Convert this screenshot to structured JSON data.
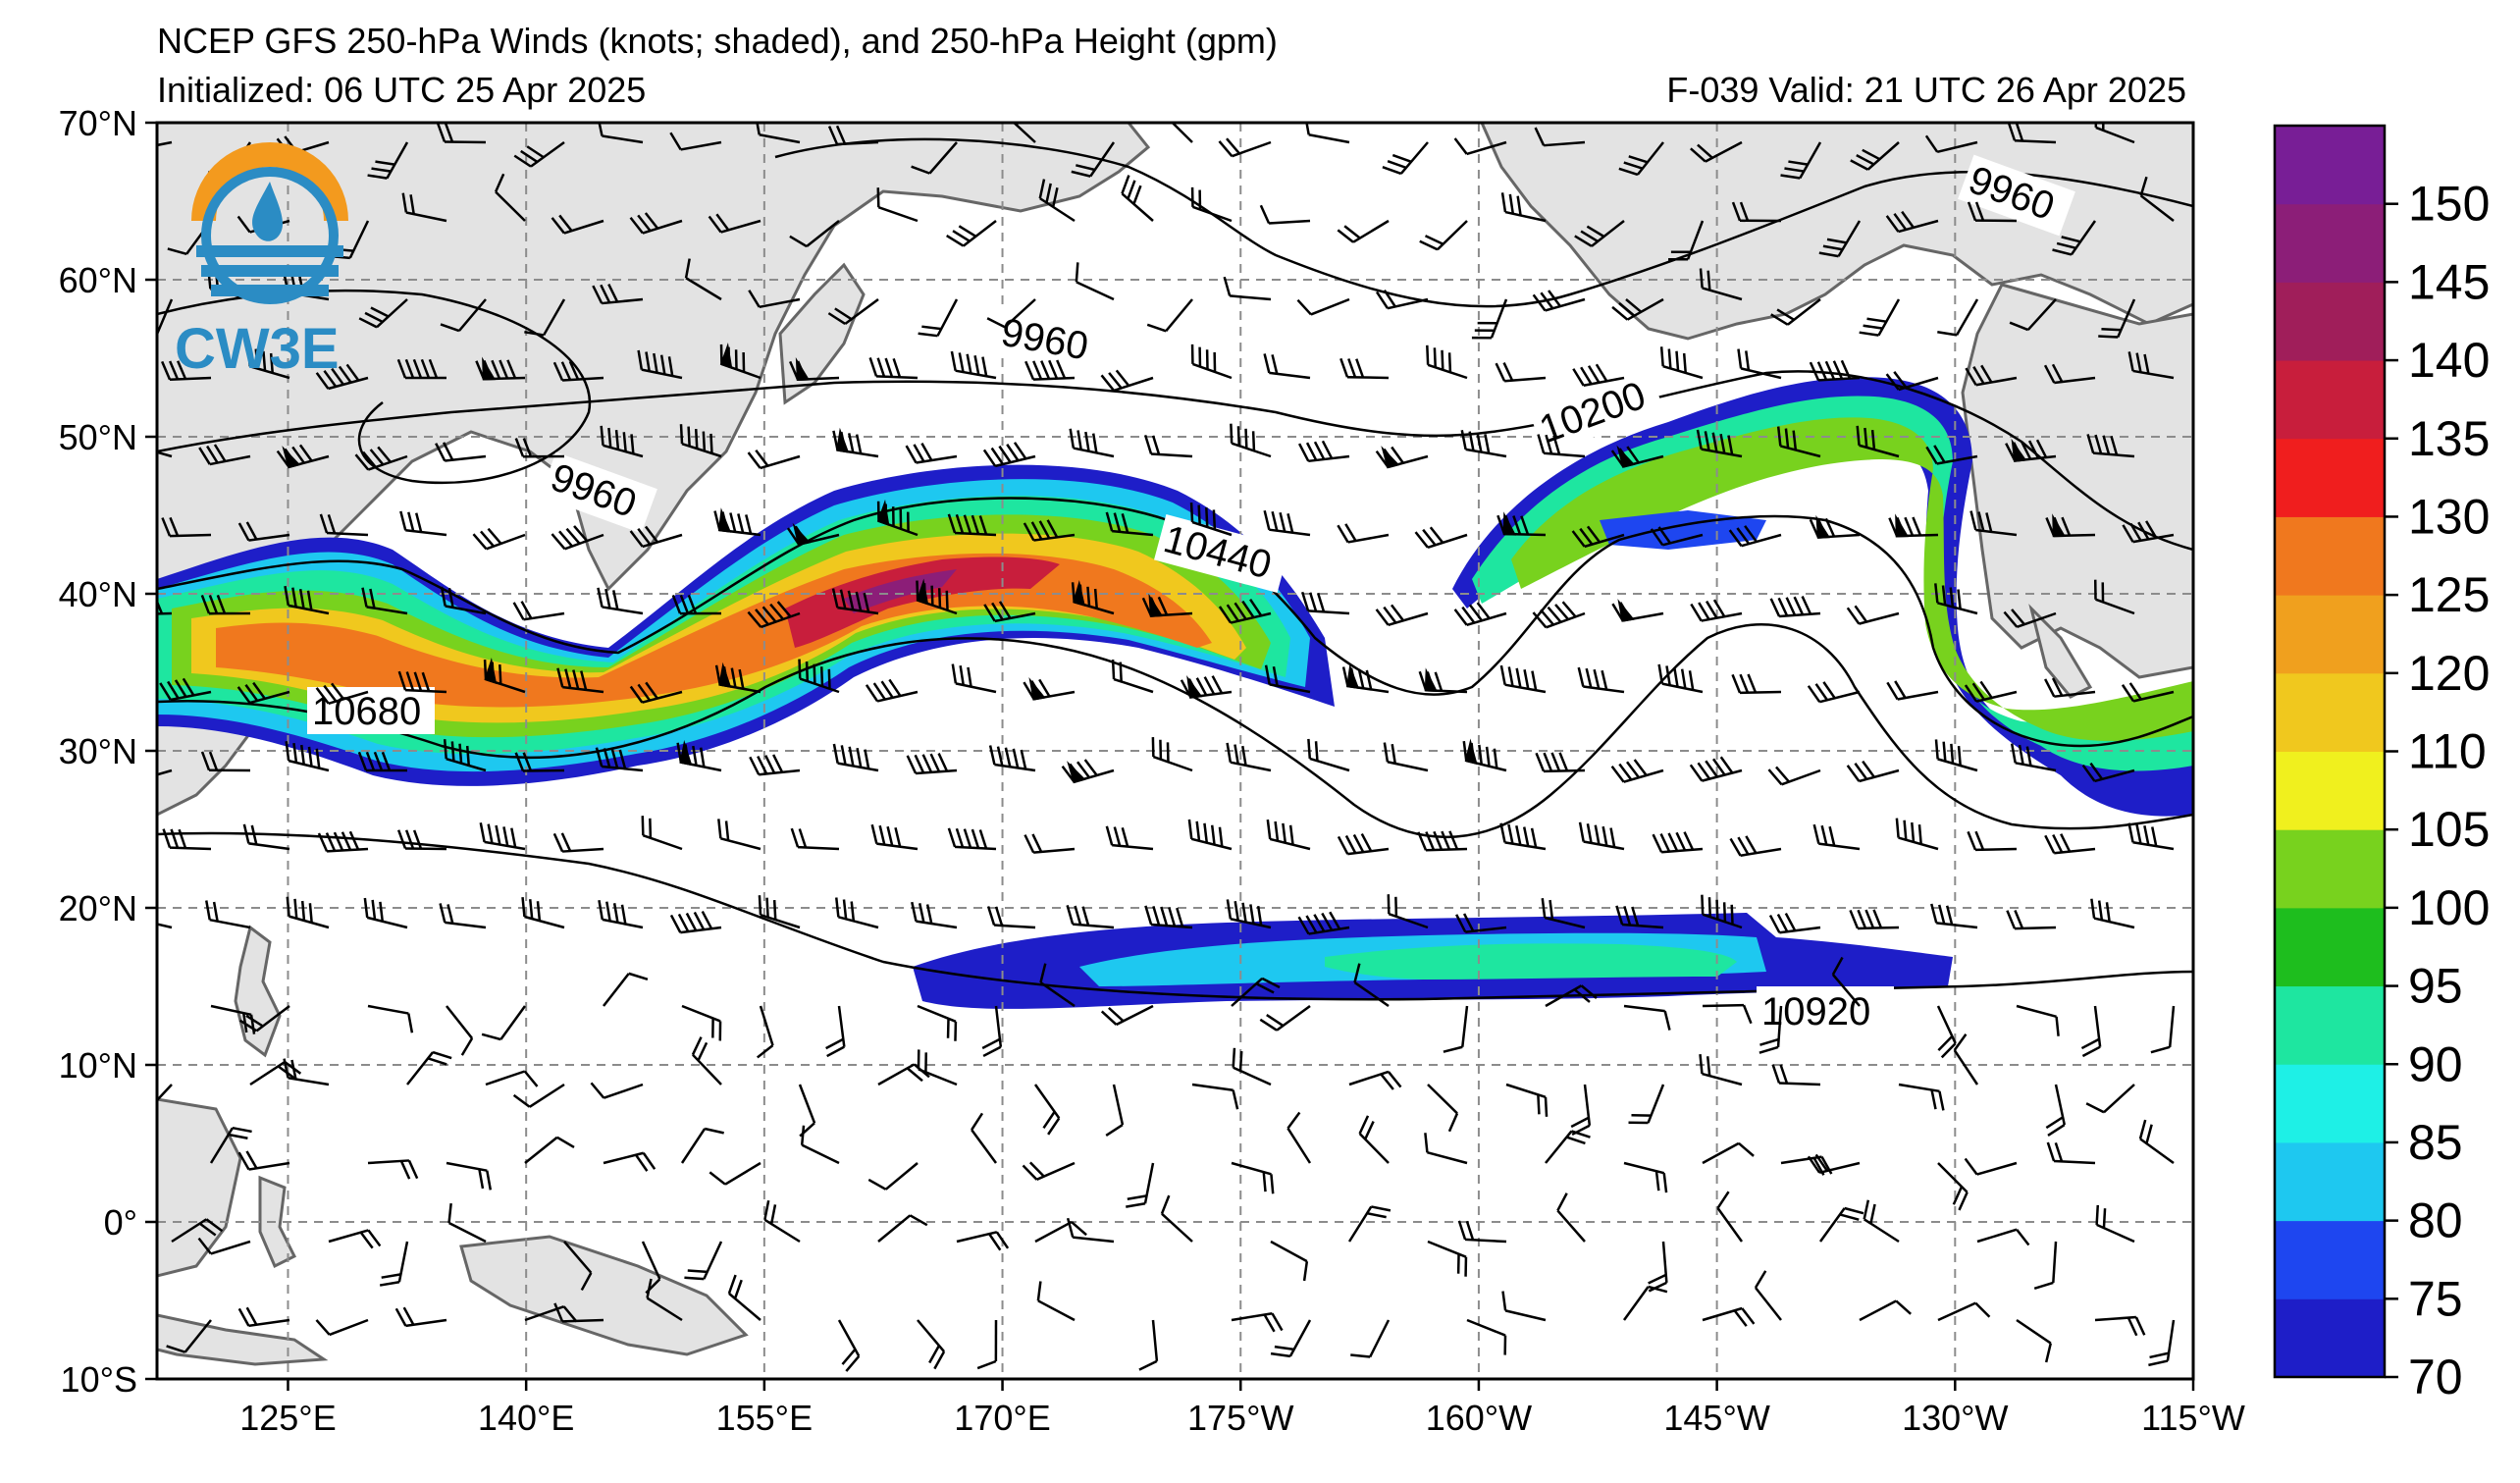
{
  "header": {
    "title": "NCEP GFS 250-hPa Winds (knots; shaded), and 250-hPa Height (gpm)",
    "initialized": "Initialized: 06 UTC 25 Apr 2025",
    "valid": "F-039  Valid: 21 UTC 26 Apr 2025"
  },
  "logo": {
    "text": "CW3E",
    "colors": {
      "orange": "#F39A1E",
      "blue": "#2B8CC4"
    }
  },
  "map": {
    "lon_labels": [
      "125°E",
      "140°E",
      "155°E",
      "170°E",
      "175°W",
      "160°W",
      "145°W",
      "130°W",
      "115°W"
    ],
    "lat_labels": [
      "70°N",
      "60°N",
      "50°N",
      "40°N",
      "30°N",
      "20°N",
      "10°N",
      "0°",
      "10°S"
    ],
    "land_color": "#E3E3E3",
    "coast_color": "#666666",
    "grid": "dashed gray",
    "contour_labels": [
      "9960",
      "9960",
      "9960",
      "10200",
      "10440",
      "10680",
      "10920"
    ]
  },
  "colorbar": {
    "levels": [
      70,
      75,
      80,
      85,
      90,
      95,
      100,
      105,
      110,
      120,
      125,
      130,
      135,
      140,
      145,
      150
    ],
    "tick_labels": [
      "70",
      "75",
      "80",
      "85",
      "90",
      "95",
      "100",
      "105",
      "110",
      "120",
      "125",
      "130",
      "135",
      "140",
      "145",
      "150"
    ],
    "colors": [
      "#1E1EC8",
      "#1E46F0",
      "#1EC8F0",
      "#1EF0E6",
      "#1EE6A0",
      "#1EBE1E",
      "#78D21E",
      "#F0F01E",
      "#F0C81E",
      "#F0A01E",
      "#F0781E",
      "#F01E1E",
      "#C81E3C",
      "#A01E5A",
      "#8C1E78",
      "#781E96"
    ]
  }
}
